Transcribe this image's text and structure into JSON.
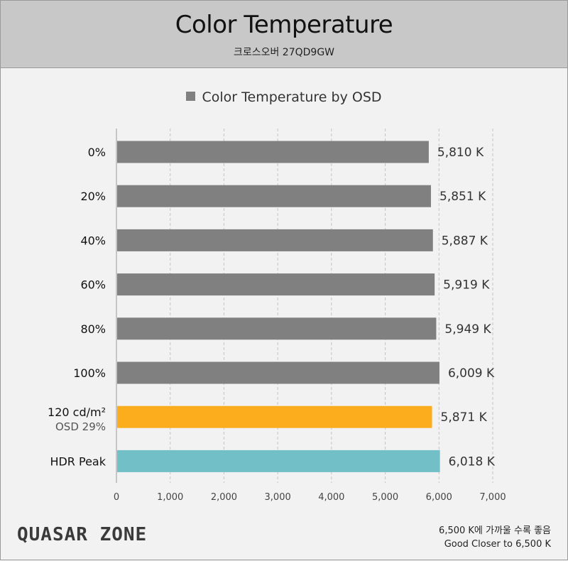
{
  "header": {
    "title": "Color Temperature",
    "subtitle": "크로스오버 27QD9GW"
  },
  "legend": {
    "label": "Color Temperature by OSD",
    "color": "#808080"
  },
  "chart_data": {
    "type": "bar",
    "orientation": "horizontal",
    "title": "Color Temperature",
    "subtitle": "크로스오버 27QD9GW",
    "xlim": [
      0,
      7000
    ],
    "grid": "vertical dashed",
    "legend_placement": "top-center",
    "x_ticks": [
      "0",
      "1,000",
      "2,000",
      "3,000",
      "4,000",
      "5,000",
      "6,000",
      "7,000"
    ],
    "x_tick_values": [
      0,
      1000,
      2000,
      3000,
      4000,
      5000,
      6000,
      7000
    ],
    "series": [
      {
        "name": "Color Temperature by OSD"
      }
    ],
    "bars": [
      {
        "label": "0%",
        "sublabel": "",
        "value": 5810,
        "value_label": "5,810 K",
        "color": "#808080"
      },
      {
        "label": "20%",
        "sublabel": "",
        "value": 5851,
        "value_label": "5,851 K",
        "color": "#808080"
      },
      {
        "label": "40%",
        "sublabel": "",
        "value": 5887,
        "value_label": "5,887 K",
        "color": "#808080"
      },
      {
        "label": "60%",
        "sublabel": "",
        "value": 5919,
        "value_label": "5,919 K",
        "color": "#808080"
      },
      {
        "label": "80%",
        "sublabel": "",
        "value": 5949,
        "value_label": "5,949 K",
        "color": "#808080"
      },
      {
        "label": "100%",
        "sublabel": "",
        "value": 6009,
        "value_label": "6,009 K",
        "color": "#808080"
      },
      {
        "label": "120 cd/m²",
        "sublabel": "OSD 29%",
        "value": 5871,
        "value_label": "5,871 K",
        "color": "#fcad1e"
      },
      {
        "label": "HDR Peak",
        "sublabel": "",
        "value": 6018,
        "value_label": "6,018 K",
        "color": "#72bfc7"
      }
    ]
  },
  "footer": {
    "logo": "QUASAR ZONE",
    "note_ko": "6,500 K에 가까울 수록 좋음",
    "note_en": "Good Closer to 6,500 K"
  }
}
